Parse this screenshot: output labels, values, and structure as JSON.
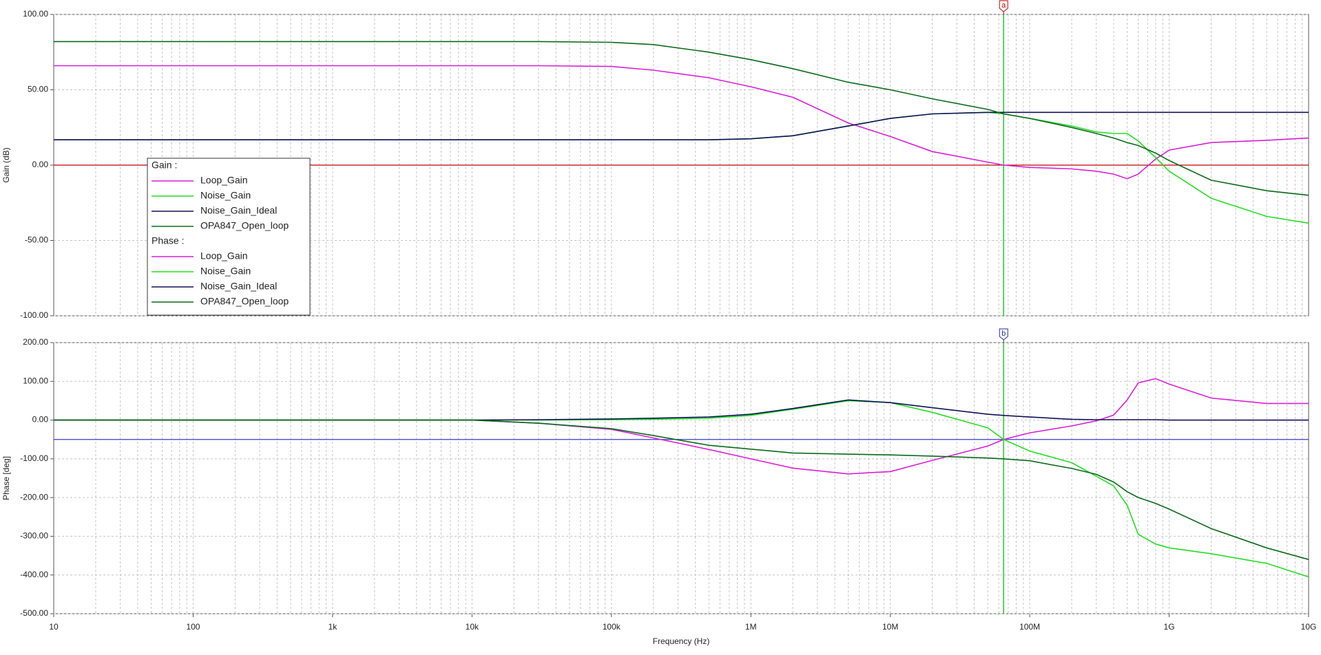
{
  "chart_data": [
    {
      "type": "line",
      "ylabel": "Gain (dB)",
      "xscale": "log",
      "grid": true,
      "legend": "left",
      "legend_title": "Gain :",
      "xlim": [
        10,
        10000000000
      ],
      "ylim": [
        -100,
        100
      ],
      "yticks": [
        {
          "value": 100,
          "label": "100.00"
        },
        {
          "value": 50,
          "label": "50.00"
        },
        {
          "value": 0,
          "label": "0.00"
        },
        {
          "value": -50,
          "label": "-50.00"
        },
        {
          "value": -100,
          "label": "-100.00"
        }
      ],
      "hlines": [
        {
          "value": 0,
          "color": "#c00000"
        }
      ],
      "cursor": {
        "label": "a",
        "x": 65000000,
        "color": "#c00000",
        "line_color": "#22cc22"
      },
      "x": [
        10,
        100,
        1000,
        10000,
        30000,
        100000,
        200000,
        500000,
        1000000,
        2000000,
        5000000,
        10000000,
        20000000,
        50000000,
        65000000,
        100000000,
        200000000,
        300000000,
        400000000,
        500000000,
        600000000,
        800000000,
        1000000000,
        2000000000,
        5000000000,
        10000000000
      ],
      "series": [
        {
          "name": "Loop_Gain",
          "color": "#d81ed8",
          "values": [
            66,
            66,
            66,
            66,
            66,
            65.5,
            63,
            58,
            52,
            45,
            28,
            19,
            9,
            2,
            0,
            -1.5,
            -2.5,
            -4,
            -6,
            -9,
            -6,
            4,
            10,
            15,
            16.5,
            18
          ]
        },
        {
          "name": "Noise_Gain",
          "color": "#22dd22",
          "values": [
            16.8,
            16.8,
            16.8,
            16.8,
            16.8,
            16.8,
            16.8,
            16.8,
            17.5,
            19.5,
            26,
            31,
            34,
            35,
            34,
            31,
            26,
            22,
            21,
            21,
            16,
            5,
            -4,
            -22,
            -34,
            -38.5
          ]
        },
        {
          "name": "Noise_Gain_Ideal",
          "color": "#10105a",
          "values": [
            16.8,
            16.8,
            16.8,
            16.8,
            16.8,
            16.8,
            16.8,
            16.8,
            17.5,
            19.5,
            26,
            31,
            34,
            35,
            35,
            35,
            35,
            35,
            35,
            35,
            35,
            35,
            35,
            35,
            35,
            35
          ]
        },
        {
          "name": "OPA847_Open_loop",
          "color": "#0a6a1a",
          "values": [
            82,
            82,
            82,
            82,
            82,
            81.5,
            80,
            75,
            70,
            64,
            55,
            50,
            44,
            37,
            34,
            31,
            25,
            21,
            18,
            15,
            13,
            8,
            3,
            -10,
            -17,
            -20
          ]
        }
      ]
    },
    {
      "type": "line",
      "ylabel": "Phase [deg]",
      "xlabel": "Frequency (Hz)",
      "xscale": "log",
      "grid": true,
      "legend_title": "Phase :",
      "xlim": [
        10,
        10000000000
      ],
      "ylim": [
        -500,
        200
      ],
      "xticks": [
        10,
        100,
        {
          "value": 1000,
          "label": "1k"
        },
        {
          "value": 10000,
          "label": "10k"
        },
        {
          "value": 100000,
          "label": "100k"
        },
        {
          "value": 1000000,
          "label": "1M"
        },
        {
          "value": 10000000,
          "label": "10M"
        },
        {
          "value": 100000000,
          "label": "100M"
        },
        {
          "value": 1000000000,
          "label": "1G"
        },
        {
          "value": 10000000000,
          "label": "10G"
        }
      ],
      "yticks": [
        {
          "value": 200,
          "label": "200.00"
        },
        {
          "value": 100,
          "label": "100.00"
        },
        {
          "value": 0,
          "label": "0.00"
        },
        {
          "value": -100,
          "label": "-100.00"
        },
        {
          "value": -200,
          "label": "-200.00"
        },
        {
          "value": -300,
          "label": "-300.00"
        },
        {
          "value": -400,
          "label": "-400.00"
        },
        {
          "value": -500,
          "label": "-500.00"
        }
      ],
      "hlines": [
        {
          "value": -50,
          "color": "#3a3ad0"
        }
      ],
      "cursor": {
        "label": "b",
        "x": 65000000,
        "color": "#2a2aa0",
        "line_color": "#22cc22"
      },
      "x": [
        10,
        100,
        1000,
        10000,
        30000,
        100000,
        200000,
        500000,
        1000000,
        2000000,
        5000000,
        10000000,
        20000000,
        50000000,
        65000000,
        100000000,
        200000000,
        300000000,
        400000000,
        500000000,
        600000000,
        800000000,
        1000000000,
        2000000000,
        5000000000,
        10000000000
      ],
      "series": [
        {
          "name": "Loop_Gain",
          "color": "#d81ed8",
          "values": [
            0,
            0,
            0,
            0,
            -8,
            -24,
            -46,
            -76,
            -100,
            -124,
            -139,
            -133,
            -104,
            -67,
            -50,
            -33,
            -15,
            -2,
            13,
            52,
            96,
            107,
            93,
            57,
            43,
            43
          ]
        },
        {
          "name": "Noise_Gain",
          "color": "#22dd22",
          "values": [
            0,
            0,
            0,
            0,
            0,
            1,
            2,
            5,
            12,
            28,
            50,
            45,
            20,
            -20,
            -50,
            -80,
            -110,
            -145,
            -170,
            -220,
            -295,
            -320,
            -330,
            -345,
            -370,
            -405
          ]
        },
        {
          "name": "Noise_Gain_Ideal",
          "color": "#10105a",
          "values": [
            0,
            0,
            0,
            0,
            1,
            3,
            5,
            8,
            15,
            30,
            52,
            45,
            32,
            15,
            12,
            8,
            2,
            1,
            1,
            1,
            1,
            1,
            0,
            0,
            0,
            0
          ]
        },
        {
          "name": "OPA847_Open_loop",
          "color": "#0a6a1a",
          "values": [
            0,
            0,
            0,
            0,
            -8,
            -22,
            -40,
            -65,
            -75,
            -85,
            -88,
            -90,
            -93,
            -98,
            -100,
            -105,
            -125,
            -140,
            -160,
            -185,
            -200,
            -215,
            -230,
            -280,
            -330,
            -360
          ]
        }
      ]
    }
  ]
}
